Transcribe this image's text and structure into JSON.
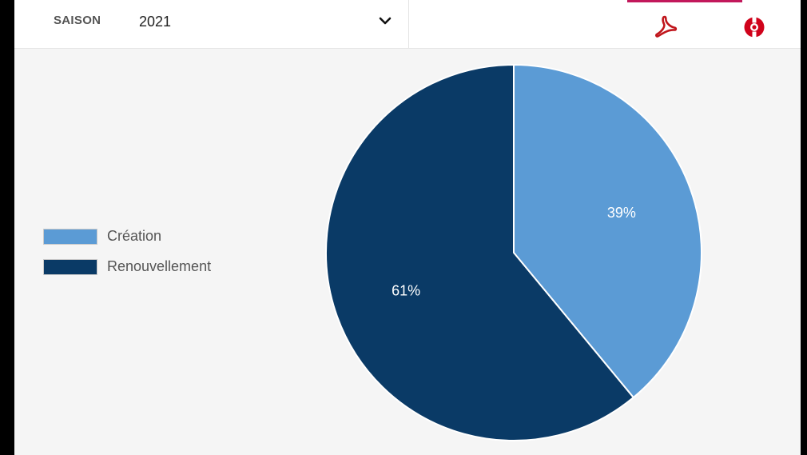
{
  "toolbar": {
    "season_label": "SAISON",
    "season_value": "2021",
    "chevron_icon": "chevron-down-icon",
    "pdf_icon": "pdf-icon",
    "help_icon": "help-lifebuoy-icon",
    "accent_color": "#c2185b"
  },
  "chart_data": {
    "type": "pie",
    "categories": [
      "Création",
      "Renouvellement"
    ],
    "values": [
      39,
      61
    ],
    "data_labels": [
      "39%",
      "61%"
    ],
    "colors": [
      "#5b9bd5",
      "#0a3a66"
    ],
    "legend_position": "left"
  }
}
